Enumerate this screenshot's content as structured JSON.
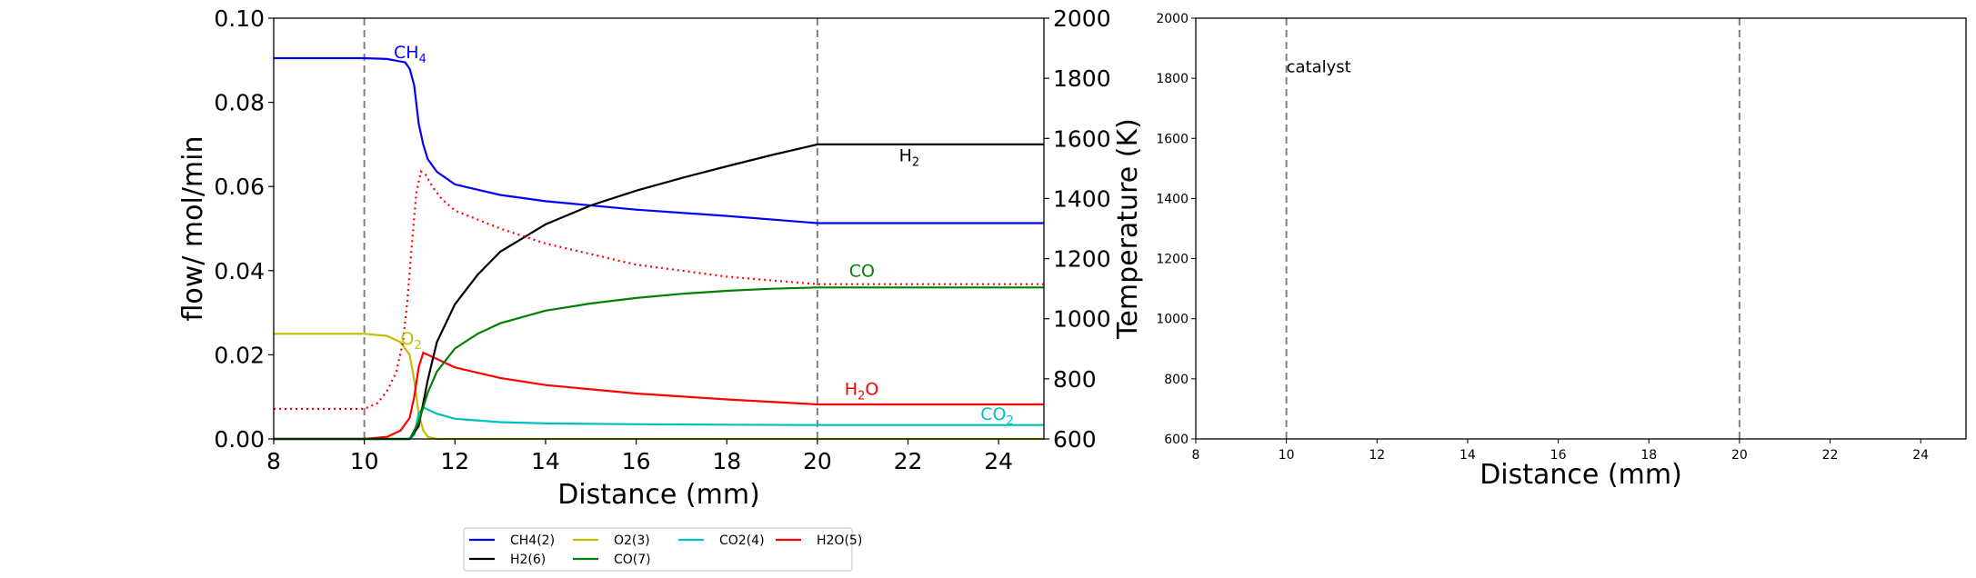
{
  "chart_data": [
    {
      "type": "line",
      "xlabel": "Distance (mm)",
      "ylabel": "flow/ mol/min",
      "y2label": "Temperature (K)",
      "xlim": [
        8,
        25
      ],
      "ylim": [
        0,
        0.1
      ],
      "y2lim": [
        600,
        2000
      ],
      "xticks": [
        "8",
        "10",
        "12",
        "14",
        "16",
        "18",
        "20",
        "22",
        "24"
      ],
      "yticks": [
        "0.00",
        "0.02",
        "0.04",
        "0.06",
        "0.08",
        "0.10"
      ],
      "y2ticks": [
        "600",
        "800",
        "1000",
        "1200",
        "1400",
        "1600",
        "1800",
        "2000"
      ],
      "vlines": [
        10,
        20
      ],
      "series": [
        {
          "name": "CH4(2)",
          "color": "#0000ff",
          "x": [
            8,
            10,
            10.5,
            10.9,
            11.0,
            11.1,
            11.2,
            11.3,
            11.4,
            11.6,
            12,
            13,
            14,
            16,
            18,
            20,
            25
          ],
          "y": [
            0.0905,
            0.0905,
            0.0903,
            0.0895,
            0.088,
            0.084,
            0.075,
            0.07,
            0.0665,
            0.0635,
            0.0605,
            0.058,
            0.0565,
            0.0545,
            0.053,
            0.0513,
            0.0513
          ]
        },
        {
          "name": "O2(3)",
          "color": "#bfbf00",
          "x": [
            8,
            10,
            10.5,
            10.8,
            11.0,
            11.1,
            11.2,
            11.3,
            11.4,
            11.6,
            25
          ],
          "y": [
            0.025,
            0.025,
            0.0245,
            0.023,
            0.02,
            0.014,
            0.006,
            0.002,
            0.0005,
            0.0,
            0.0
          ]
        },
        {
          "name": "CO2(4)",
          "color": "#00bfbf",
          "x": [
            8,
            10,
            11.0,
            11.1,
            11.2,
            11.3,
            11.4,
            11.6,
            12,
            13,
            14,
            16,
            18,
            20,
            25
          ],
          "y": [
            0,
            0,
            0.0,
            0.001,
            0.006,
            0.0075,
            0.007,
            0.006,
            0.0048,
            0.004,
            0.0037,
            0.0035,
            0.0034,
            0.0033,
            0.0033
          ]
        },
        {
          "name": "H2O(5)",
          "color": "#ff0000",
          "x": [
            8,
            10,
            10.5,
            10.8,
            11.0,
            11.1,
            11.2,
            11.3,
            11.4,
            11.6,
            12,
            13,
            14,
            16,
            18,
            20,
            25
          ],
          "y": [
            0,
            0,
            0.0005,
            0.002,
            0.005,
            0.01,
            0.017,
            0.0205,
            0.02,
            0.019,
            0.017,
            0.0145,
            0.0128,
            0.0108,
            0.0094,
            0.0082,
            0.0082
          ]
        },
        {
          "name": "H2(6)",
          "color": "#000000",
          "x": [
            8,
            11.0,
            11.2,
            11.4,
            11.6,
            12,
            12.5,
            13,
            14,
            15,
            16,
            17,
            18,
            19,
            20,
            25
          ],
          "y": [
            0,
            0,
            0.003,
            0.014,
            0.023,
            0.032,
            0.039,
            0.0445,
            0.051,
            0.0555,
            0.059,
            0.062,
            0.0648,
            0.0675,
            0.07,
            0.07
          ]
        },
        {
          "name": "CO(7)",
          "color": "#008000",
          "x": [
            8,
            11.0,
            11.2,
            11.4,
            11.6,
            12,
            12.5,
            13,
            14,
            15,
            16,
            17,
            18,
            19,
            20,
            25
          ],
          "y": [
            0,
            0,
            0.004,
            0.011,
            0.016,
            0.0215,
            0.025,
            0.0275,
            0.0305,
            0.0322,
            0.0335,
            0.0345,
            0.0352,
            0.0357,
            0.036,
            0.036
          ]
        }
      ],
      "temperature": {
        "color": "#ff0000",
        "style": "dotted",
        "axis": "right",
        "x": [
          8,
          10,
          10.3,
          10.5,
          10.7,
          10.85,
          10.95,
          11.05,
          11.15,
          11.25,
          11.35,
          11.5,
          11.7,
          12,
          13,
          14,
          16,
          18,
          20,
          25
        ],
        "y": [
          700,
          700,
          720,
          760,
          820,
          920,
          1060,
          1250,
          1420,
          1490,
          1480,
          1440,
          1400,
          1360,
          1300,
          1250,
          1180,
          1140,
          1115,
          1115
        ]
      },
      "annotations": [
        {
          "text": "CH",
          "sub": "4",
          "x": 10.65,
          "y": 0.0905,
          "color": "#0000ff"
        },
        {
          "text": "H",
          "sub": "2",
          "x": 21.8,
          "y": 0.066,
          "color": "#000000"
        },
        {
          "text": "CO",
          "sub": "",
          "x": 20.7,
          "y": 0.0385,
          "color": "#008000"
        },
        {
          "text": "O",
          "sub": "2",
          "x": 10.8,
          "y": 0.0225,
          "color": "#bfbf00"
        },
        {
          "text": "H",
          "sub": "2",
          "suffix": "O",
          "x": 20.6,
          "y": 0.0105,
          "color": "#ff0000"
        },
        {
          "text": "CO",
          "sub": "2",
          "x": 23.6,
          "y": 0.0045,
          "color": "#00bfbf"
        }
      ],
      "legend": {
        "location": "bottom-center",
        "columns": 4
      }
    },
    {
      "type": "line",
      "xlabel": "Distance (mm)",
      "ylabel": "",
      "xlim": [
        8,
        25
      ],
      "ylim": [
        600,
        2000
      ],
      "xticks": [
        "8",
        "10",
        "12",
        "14",
        "16",
        "18",
        "20",
        "22",
        "24"
      ],
      "yticks": [
        "600",
        "800",
        "1000",
        "1200",
        "1400",
        "1600",
        "1800",
        "2000"
      ],
      "vlines": [
        10,
        20
      ],
      "series": [],
      "annotations": [
        {
          "text": "catalyst",
          "x": 10.0,
          "y": 1820,
          "color": "#000000"
        }
      ]
    }
  ]
}
